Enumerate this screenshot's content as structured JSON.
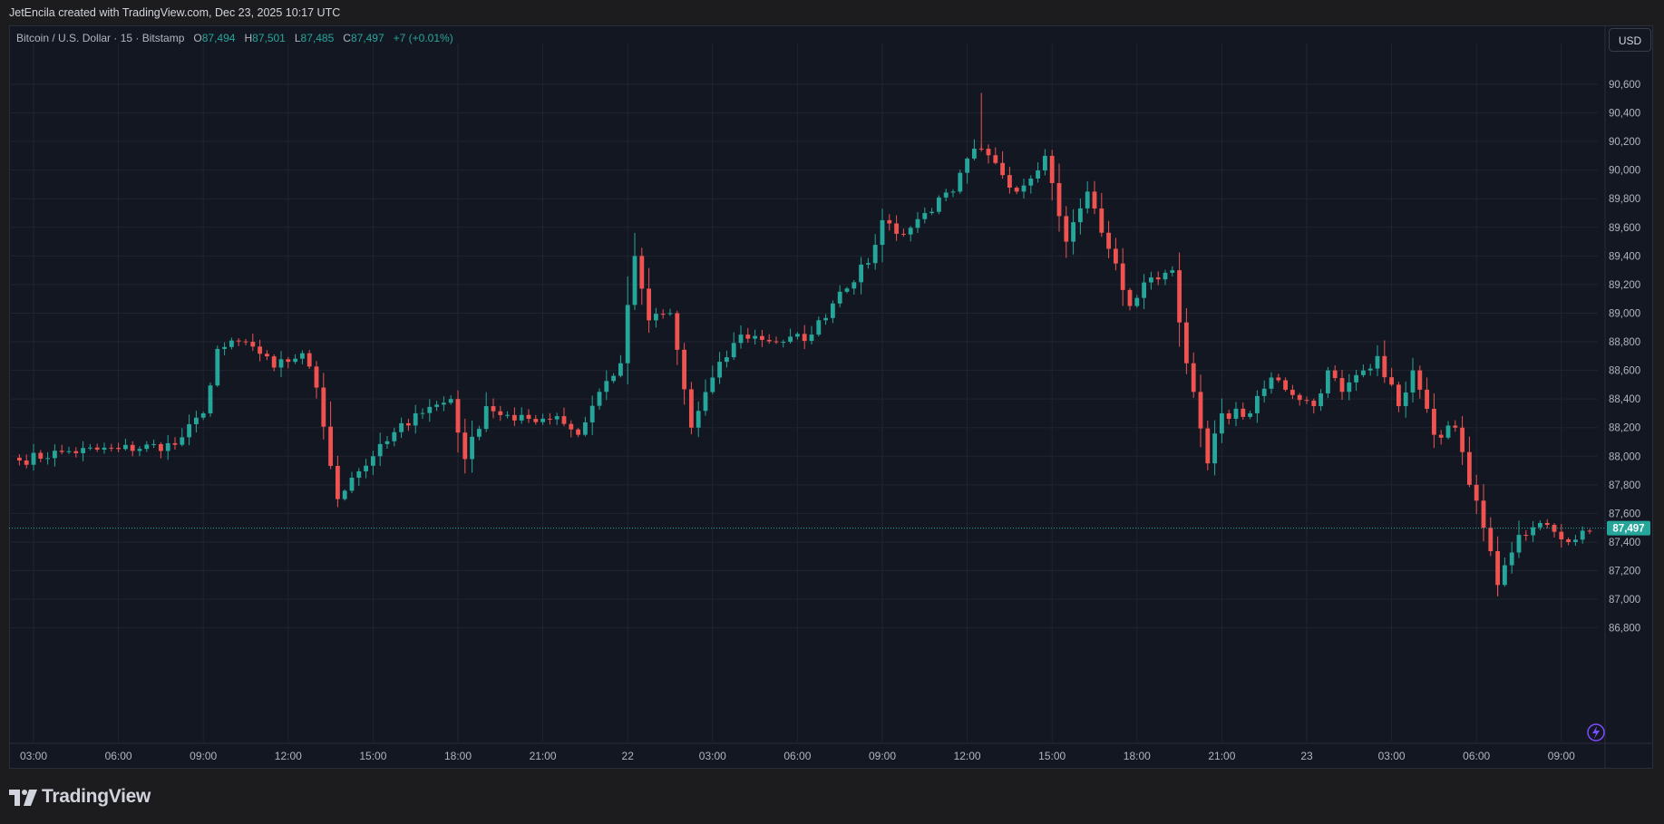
{
  "header": {
    "attribution": "JetEncila created with TradingView.com, Dec 23, 2025 10:17 UTC"
  },
  "legend": {
    "symbol": "Bitcoin / U.S. Dollar · 15 · Bitstamp",
    "o_label": "O",
    "o_value": "87,494",
    "h_label": "H",
    "h_value": "87,501",
    "l_label": "L",
    "l_value": "87,485",
    "c_label": "C",
    "c_value": "87,497",
    "change": "+7 (+0.01%)"
  },
  "currency_button": "USD",
  "footer": {
    "brand": "TradingView",
    "logo_icon": "tradingview-logo-icon"
  },
  "colors": {
    "up": "#26a69a",
    "down": "#ef5350",
    "background": "#131722",
    "grid": "#1f2430",
    "text": "#b2b5be"
  },
  "chart_data": {
    "type": "candlestick",
    "interval": "15",
    "exchange": "Bitstamp",
    "currency": "USD",
    "last_price": 87497,
    "last_price_label": "87,497",
    "ylim": [
      86700,
      90750
    ],
    "y_ticks": [
      {
        "value": 86800,
        "label": "86,800"
      },
      {
        "value": 87000,
        "label": "87,000"
      },
      {
        "value": 87200,
        "label": "87,200"
      },
      {
        "value": 87400,
        "label": "87,400"
      },
      {
        "value": 87600,
        "label": "87,600"
      },
      {
        "value": 87800,
        "label": "87,800"
      },
      {
        "value": 88000,
        "label": "88,000"
      },
      {
        "value": 88200,
        "label": "88,200"
      },
      {
        "value": 88400,
        "label": "88,400"
      },
      {
        "value": 88600,
        "label": "88,600"
      },
      {
        "value": 88800,
        "label": "88,800"
      },
      {
        "value": 89000,
        "label": "89,000"
      },
      {
        "value": 89200,
        "label": "89,200"
      },
      {
        "value": 89400,
        "label": "89,400"
      },
      {
        "value": 89600,
        "label": "89,600"
      },
      {
        "value": 89800,
        "label": "89,800"
      },
      {
        "value": 90000,
        "label": "90,000"
      },
      {
        "value": 90200,
        "label": "90,200"
      },
      {
        "value": 90400,
        "label": "90,400"
      },
      {
        "value": 90600,
        "label": "90,600"
      }
    ],
    "x_ticks": [
      {
        "t": "21 03:00",
        "label": "03:00"
      },
      {
        "t": "21 06:00",
        "label": "06:00"
      },
      {
        "t": "21 09:00",
        "label": "09:00"
      },
      {
        "t": "21 12:00",
        "label": "12:00"
      },
      {
        "t": "21 15:00",
        "label": "15:00"
      },
      {
        "t": "21 18:00",
        "label": "18:00"
      },
      {
        "t": "21 21:00",
        "label": "21:00"
      },
      {
        "t": "22 00:00",
        "label": "22"
      },
      {
        "t": "22 03:00",
        "label": "03:00"
      },
      {
        "t": "22 06:00",
        "label": "06:00"
      },
      {
        "t": "22 09:00",
        "label": "09:00"
      },
      {
        "t": "22 12:00",
        "label": "12:00"
      },
      {
        "t": "22 15:00",
        "label": "15:00"
      },
      {
        "t": "22 18:00",
        "label": "18:00"
      },
      {
        "t": "22 21:00",
        "label": "21:00"
      },
      {
        "t": "23 00:00",
        "label": "23"
      },
      {
        "t": "23 03:00",
        "label": "03:00"
      },
      {
        "t": "23 06:00",
        "label": "06:00"
      },
      {
        "t": "23 09:00",
        "label": "09:00"
      }
    ],
    "x_range": [
      "21 02:30",
      "23 10:15"
    ],
    "anchors": [
      {
        "t": "21 02:30",
        "c": 87970
      },
      {
        "t": "21 04:00",
        "c": 88030
      },
      {
        "t": "21 06:00",
        "c": 88050
      },
      {
        "t": "21 08:00",
        "c": 88080
      },
      {
        "t": "21 09:00",
        "c": 88300
      },
      {
        "t": "21 09:30",
        "c": 88750
      },
      {
        "t": "21 10:30",
        "c": 88800
      },
      {
        "t": "21 11:30",
        "c": 88620
      },
      {
        "t": "21 12:30",
        "c": 88720
      },
      {
        "t": "21 13:00",
        "c": 88480
      },
      {
        "t": "21 13:45",
        "c": 87700
      },
      {
        "t": "21 14:15",
        "c": 87850
      },
      {
        "t": "21 15:00",
        "c": 88000
      },
      {
        "t": "21 16:30",
        "c": 88300
      },
      {
        "t": "21 17:45",
        "c": 88400
      },
      {
        "t": "21 18:15",
        "c": 87980
      },
      {
        "t": "21 19:00",
        "c": 88350
      },
      {
        "t": "21 20:00",
        "c": 88250
      },
      {
        "t": "21 21:30",
        "c": 88280
      },
      {
        "t": "21 22:15",
        "c": 88150
      },
      {
        "t": "21 23:00",
        "c": 88450
      },
      {
        "t": "21 23:45",
        "c": 88650
      },
      {
        "t": "22 00:15",
        "c": 89400
      },
      {
        "t": "22 00:45",
        "c": 88950
      },
      {
        "t": "22 01:30",
        "c": 89000
      },
      {
        "t": "22 02:15",
        "c": 88200
      },
      {
        "t": "22 03:00",
        "c": 88550
      },
      {
        "t": "22 04:00",
        "c": 88850
      },
      {
        "t": "22 05:30",
        "c": 88800
      },
      {
        "t": "22 06:30",
        "c": 88850
      },
      {
        "t": "22 07:30",
        "c": 89150
      },
      {
        "t": "22 08:30",
        "c": 89350
      },
      {
        "t": "22 09:00",
        "c": 89650
      },
      {
        "t": "22 09:45",
        "c": 89550
      },
      {
        "t": "22 10:30",
        "c": 89700
      },
      {
        "t": "22 11:30",
        "c": 89850
      },
      {
        "t": "22 12:15",
        "c": 90150
      },
      {
        "t": "22 13:00",
        "c": 90050
      },
      {
        "t": "22 13:45",
        "c": 89850
      },
      {
        "t": "22 14:45",
        "c": 90100
      },
      {
        "t": "22 15:30",
        "c": 89500
      },
      {
        "t": "22 16:15",
        "c": 89850
      },
      {
        "t": "22 17:00",
        "c": 89450
      },
      {
        "t": "22 17:45",
        "c": 89050
      },
      {
        "t": "22 18:30",
        "c": 89250
      },
      {
        "t": "22 19:15",
        "c": 89300
      },
      {
        "t": "22 19:45",
        "c": 88650
      },
      {
        "t": "22 20:30",
        "c": 87950
      },
      {
        "t": "22 21:00",
        "c": 88300
      },
      {
        "t": "22 22:00",
        "c": 88300
      },
      {
        "t": "22 22:45",
        "c": 88550
      },
      {
        "t": "23 00:15",
        "c": 88350
      },
      {
        "t": "23 00:45",
        "c": 88600
      },
      {
        "t": "23 01:15",
        "c": 88450
      },
      {
        "t": "23 02:30",
        "c": 88700
      },
      {
        "t": "23 03:15",
        "c": 88350
      },
      {
        "t": "23 03:45",
        "c": 88600
      },
      {
        "t": "23 04:30",
        "c": 88150
      },
      {
        "t": "23 05:15",
        "c": 88200
      },
      {
        "t": "23 05:45",
        "c": 87800
      },
      {
        "t": "23 06:15",
        "c": 87500
      },
      {
        "t": "23 06:45",
        "c": 87100
      },
      {
        "t": "23 07:30",
        "c": 87450
      },
      {
        "t": "23 08:30",
        "c": 87520
      },
      {
        "t": "23 09:15",
        "c": 87400
      },
      {
        "t": "23 10:15",
        "c": 87497
      }
    ],
    "max_high": 90540,
    "min_low": 87020
  }
}
